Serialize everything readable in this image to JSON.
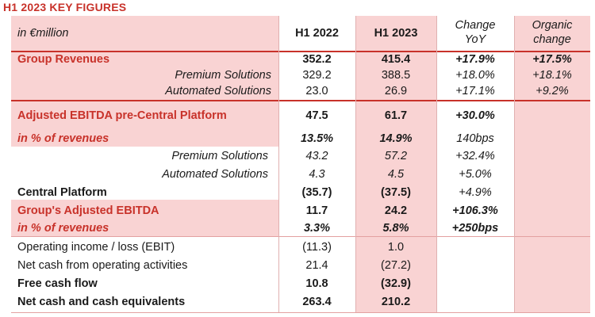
{
  "title": "H1 2023 KEY FIGURES",
  "header": {
    "unit": "in €million",
    "col1": "H1 2022",
    "col2": "H1 2023",
    "col3_line1": "Change",
    "col3_line2": "YoY",
    "col4_line1": "Organic",
    "col4_line2": "change"
  },
  "rows": [
    {
      "label": "Group Revenues",
      "h1_2022": "352.2",
      "h1_2023": "415.4",
      "change": "+17.9%",
      "organic": "+17.5%"
    },
    {
      "label": "Premium Solutions",
      "h1_2022": "329.2",
      "h1_2023": "388.5",
      "change": "+18.0%",
      "organic": "+18.1%"
    },
    {
      "label": "Automated Solutions",
      "h1_2022": "23.0",
      "h1_2023": "26.9",
      "change": "+17.1%",
      "organic": "+9.2%"
    },
    {
      "label": "Adjusted EBITDA pre-Central Platform",
      "h1_2022": "47.5",
      "h1_2023": "61.7",
      "change": "+30.0%",
      "organic": ""
    },
    {
      "label": "in % of revenues",
      "h1_2022": "13.5%",
      "h1_2023": "14.9%",
      "change": "140bps",
      "organic": ""
    },
    {
      "label": "Premium Solutions",
      "h1_2022": "43.2",
      "h1_2023": "57.2",
      "change": "+32.4%",
      "organic": ""
    },
    {
      "label": "Automated Solutions",
      "h1_2022": "4.3",
      "h1_2023": "4.5",
      "change": "+5.0%",
      "organic": ""
    },
    {
      "label": "Central Platform",
      "h1_2022": "(35.7)",
      "h1_2023": "(37.5)",
      "change": "+4.9%",
      "organic": ""
    },
    {
      "label": "Group's Adjusted EBITDA",
      "h1_2022": "11.7",
      "h1_2023": "24.2",
      "change": "+106.3%",
      "organic": ""
    },
    {
      "label": "in % of revenues",
      "h1_2022": "3.3%",
      "h1_2023": "5.8%",
      "change": "+250bps",
      "organic": ""
    },
    {
      "label": "Operating income / loss (EBIT)",
      "h1_2022": "(11.3)",
      "h1_2023": "1.0",
      "change": "",
      "organic": ""
    },
    {
      "label": "Net cash from operating activities",
      "h1_2022": "21.4",
      "h1_2023": "(27.2)",
      "change": "",
      "organic": ""
    },
    {
      "label": "Free cash flow",
      "h1_2022": "10.8",
      "h1_2023": "(32.9)",
      "change": "",
      "organic": ""
    },
    {
      "label": "Net cash and cash equivalents",
      "h1_2022": "263.4",
      "h1_2023": "210.2",
      "change": "",
      "organic": ""
    }
  ]
}
